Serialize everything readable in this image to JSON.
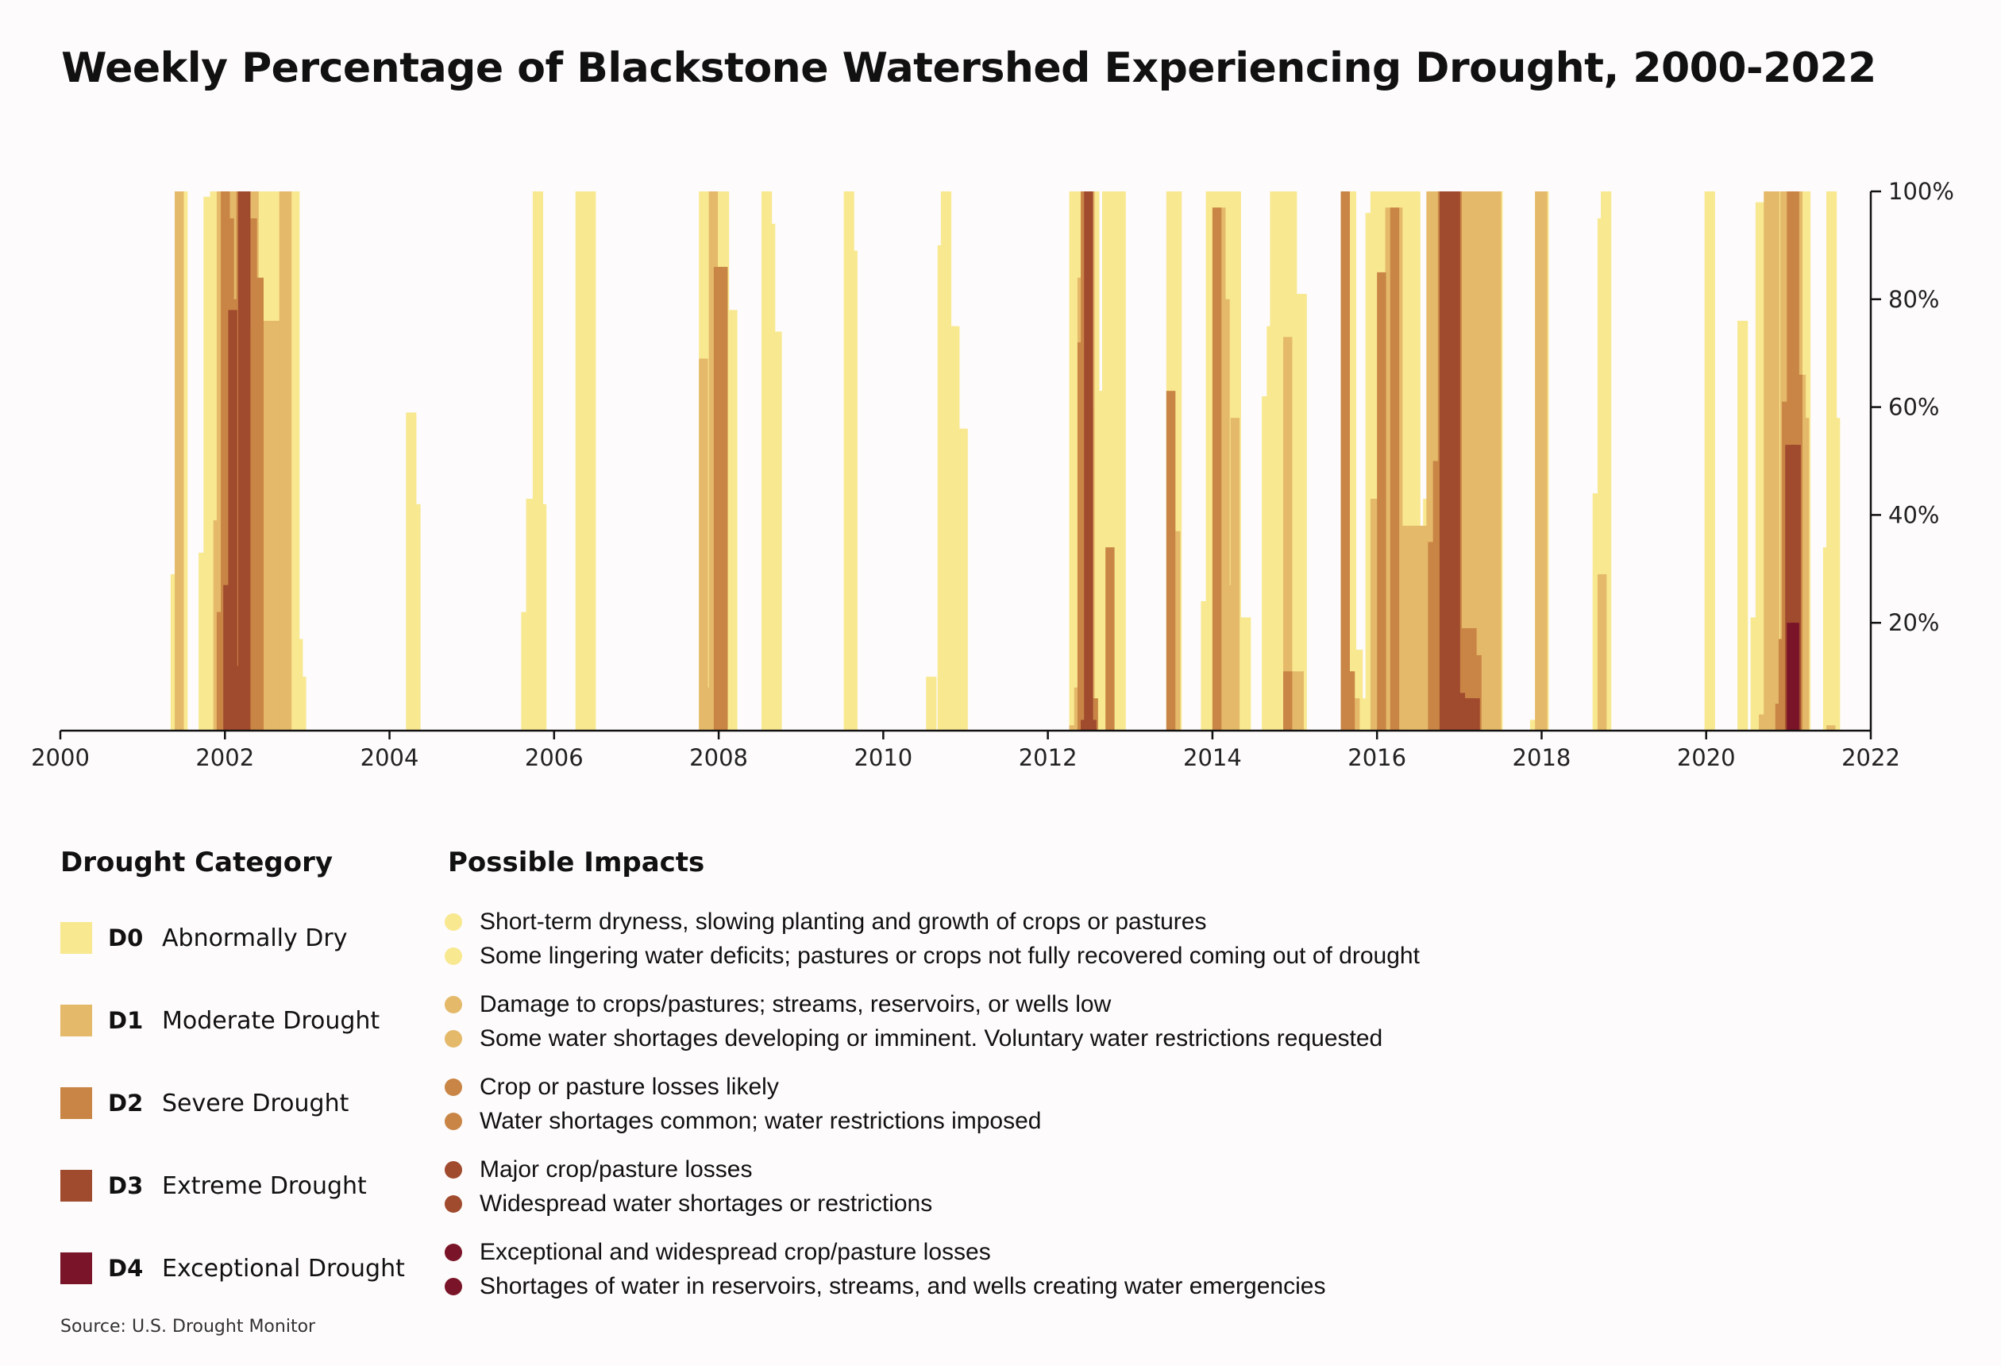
{
  "chart_data": {
    "type": "area",
    "title": "Weekly Percentage of Blackstone Watershed Experiencing Drought, 2000-2022",
    "xlabel": "",
    "ylabel": "",
    "xlim": [
      2000,
      2022
    ],
    "ylim": [
      0,
      100
    ],
    "x_ticks": [
      2000,
      2002,
      2004,
      2006,
      2008,
      2010,
      2012,
      2014,
      2016,
      2018,
      2020,
      2022
    ],
    "x_tick_labels": [
      "2000",
      "2002",
      "2004",
      "2006",
      "2008",
      "2010",
      "2012",
      "2014",
      "2016",
      "2018",
      "2020",
      "2022"
    ],
    "y_ticks": [
      20,
      40,
      60,
      80,
      100
    ],
    "y_tick_labels": [
      "20%",
      "40%",
      "60%",
      "80%",
      "100%"
    ],
    "y_axis_side": "right",
    "grid": false,
    "series": [
      {
        "name": "D0",
        "color": "#f8e890",
        "points": [
          [
            2001.34,
            29
          ],
          [
            2001.39,
            100
          ],
          [
            2001.42,
            100
          ],
          [
            2001.68,
            33
          ],
          [
            2001.74,
            99
          ],
          [
            2001.78,
            97
          ],
          [
            2001.82,
            100
          ],
          [
            2001.86,
            100
          ],
          [
            2001.9,
            100
          ],
          [
            2001.95,
            100
          ],
          [
            2002.0,
            100
          ],
          [
            2002.1,
            100
          ],
          [
            2002.2,
            100
          ],
          [
            2002.3,
            100
          ],
          [
            2002.4,
            100
          ],
          [
            2002.5,
            100
          ],
          [
            2002.6,
            100
          ],
          [
            2002.7,
            100
          ],
          [
            2002.74,
            100
          ],
          [
            2002.78,
            100
          ],
          [
            2002.82,
            17
          ],
          [
            2002.86,
            10
          ],
          [
            2004.2,
            59
          ],
          [
            2004.25,
            42
          ],
          [
            2005.6,
            22
          ],
          [
            2005.66,
            43
          ],
          [
            2005.7,
            33
          ],
          [
            2005.74,
            100
          ],
          [
            2005.78,
            42
          ],
          [
            2006.26,
            100
          ],
          [
            2006.3,
            100
          ],
          [
            2006.34,
            100
          ],
          [
            2006.38,
            100
          ],
          [
            2007.76,
            100
          ],
          [
            2007.82,
            100
          ],
          [
            2007.88,
            100
          ],
          [
            2007.94,
            100
          ],
          [
            2008.0,
            100
          ],
          [
            2008.05,
            78
          ],
          [
            2008.1,
            78
          ],
          [
            2008.52,
            100
          ],
          [
            2008.56,
            94
          ],
          [
            2008.6,
            74
          ],
          [
            2008.64,
            74
          ],
          [
            2009.52,
            100
          ],
          [
            2009.56,
            89
          ],
          [
            2010.52,
            10
          ],
          [
            2010.66,
            90
          ],
          [
            2010.7,
            100
          ],
          [
            2010.74,
            75
          ],
          [
            2010.8,
            75
          ],
          [
            2010.84,
            56
          ],
          [
            2010.9,
            56
          ],
          [
            2012.26,
            100
          ],
          [
            2012.3,
            100
          ],
          [
            2012.4,
            100
          ],
          [
            2012.5,
            100
          ],
          [
            2012.54,
            63
          ],
          [
            2012.6,
            63
          ],
          [
            2012.66,
            100
          ],
          [
            2012.7,
            100
          ],
          [
            2012.76,
            100
          ],
          [
            2012.82,
            100
          ],
          [
            2013.44,
            100
          ],
          [
            2013.5,
            100
          ],
          [
            2013.86,
            24
          ],
          [
            2013.92,
            100
          ],
          [
            2014.0,
            100
          ],
          [
            2014.1,
            100
          ],
          [
            2014.16,
            100
          ],
          [
            2014.22,
            100
          ],
          [
            2014.28,
            21
          ],
          [
            2014.34,
            21
          ],
          [
            2014.6,
            62
          ],
          [
            2014.66,
            75
          ],
          [
            2014.7,
            100
          ],
          [
            2014.76,
            100
          ],
          [
            2014.82,
            100
          ],
          [
            2014.9,
            100
          ],
          [
            2014.96,
            81
          ],
          [
            2015.02,
            81
          ],
          [
            2015.56,
            100
          ],
          [
            2015.62,
            100
          ],
          [
            2015.7,
            15
          ],
          [
            2015.76,
            6
          ],
          [
            2015.86,
            96
          ],
          [
            2015.92,
            100
          ],
          [
            2016.0,
            100
          ],
          [
            2016.1,
            100
          ],
          [
            2016.2,
            100
          ],
          [
            2016.3,
            100
          ],
          [
            2016.4,
            100
          ],
          [
            2016.5,
            38
          ],
          [
            2016.56,
            43
          ],
          [
            2016.62,
            100
          ],
          [
            2016.7,
            100
          ],
          [
            2016.8,
            100
          ],
          [
            2016.9,
            100
          ],
          [
            2017.0,
            100
          ],
          [
            2017.1,
            100
          ],
          [
            2017.2,
            100
          ],
          [
            2017.3,
            100
          ],
          [
            2017.4,
            100
          ],
          [
            2017.86,
            2
          ],
          [
            2017.92,
            100
          ],
          [
            2017.96,
            100
          ],
          [
            2018.62,
            44
          ],
          [
            2018.68,
            95
          ],
          [
            2018.72,
            100
          ],
          [
            2019.98,
            100
          ],
          [
            2020.38,
            76
          ],
          [
            2020.54,
            21
          ],
          [
            2020.6,
            98
          ],
          [
            2020.64,
            58
          ],
          [
            2020.68,
            68
          ],
          [
            2020.74,
            100
          ],
          [
            2020.8,
            100
          ],
          [
            2020.9,
            100
          ],
          [
            2021.0,
            100
          ],
          [
            2021.06,
            100
          ],
          [
            2021.1,
            100
          ],
          [
            2021.14,
            100
          ],
          [
            2021.42,
            34
          ],
          [
            2021.46,
            100
          ],
          [
            2021.5,
            58
          ]
        ]
      },
      {
        "name": "D1",
        "color": "#e4b96a",
        "points": [
          [
            2001.39,
            100
          ],
          [
            2001.86,
            39
          ],
          [
            2001.9,
            100
          ],
          [
            2001.95,
            100
          ],
          [
            2002.0,
            100
          ],
          [
            2002.1,
            100
          ],
          [
            2002.2,
            100
          ],
          [
            2002.3,
            100
          ],
          [
            2002.4,
            76
          ],
          [
            2002.5,
            76
          ],
          [
            2002.56,
            2
          ],
          [
            2002.6,
            76
          ],
          [
            2002.66,
            100
          ],
          [
            2002.7,
            100
          ],
          [
            2007.76,
            69
          ],
          [
            2007.82,
            8
          ],
          [
            2007.88,
            100
          ],
          [
            2007.94,
            86
          ],
          [
            2008.0,
            86
          ],
          [
            2012.26,
            1
          ],
          [
            2012.32,
            8
          ],
          [
            2012.36,
            84
          ],
          [
            2012.4,
            100
          ],
          [
            2012.46,
            100
          ],
          [
            2013.44,
            63
          ],
          [
            2013.5,
            37
          ],
          [
            2014.0,
            97
          ],
          [
            2014.05,
            97
          ],
          [
            2014.1,
            80
          ],
          [
            2014.16,
            27
          ],
          [
            2014.22,
            58
          ],
          [
            2014.86,
            73
          ],
          [
            2014.9,
            11
          ],
          [
            2015.0,
            11
          ],
          [
            2015.56,
            100
          ],
          [
            2015.62,
            11
          ],
          [
            2015.68,
            6
          ],
          [
            2015.92,
            43
          ],
          [
            2016.0,
            39
          ],
          [
            2016.1,
            97
          ],
          [
            2016.2,
            97
          ],
          [
            2016.3,
            38
          ],
          [
            2016.4,
            38
          ],
          [
            2016.5,
            38
          ],
          [
            2016.6,
            100
          ],
          [
            2016.7,
            100
          ],
          [
            2016.8,
            100
          ],
          [
            2016.9,
            100
          ],
          [
            2017.0,
            100
          ],
          [
            2017.1,
            100
          ],
          [
            2017.2,
            100
          ],
          [
            2017.3,
            100
          ],
          [
            2017.4,
            100
          ],
          [
            2017.92,
            100
          ],
          [
            2017.96,
            100
          ],
          [
            2018.68,
            29
          ],
          [
            2020.64,
            3
          ],
          [
            2020.7,
            100
          ],
          [
            2020.78,
            100
          ],
          [
            2020.9,
            100
          ],
          [
            2021.0,
            100
          ],
          [
            2021.06,
            100
          ],
          [
            2021.1,
            66
          ],
          [
            2021.14,
            58
          ],
          [
            2021.46,
            1
          ]
        ]
      },
      {
        "name": "D2",
        "color": "#c98545",
        "points": [
          [
            2001.9,
            22
          ],
          [
            2001.95,
            100
          ],
          [
            2002.0,
            95
          ],
          [
            2002.05,
            44
          ],
          [
            2002.1,
            80
          ],
          [
            2002.14,
            100
          ],
          [
            2002.18,
            100
          ],
          [
            2002.22,
            88
          ],
          [
            2002.28,
            95
          ],
          [
            2002.32,
            75
          ],
          [
            2002.36,
            84
          ],
          [
            2007.94,
            86
          ],
          [
            2008.0,
            86
          ],
          [
            2012.36,
            72
          ],
          [
            2012.4,
            100
          ],
          [
            2012.44,
            60
          ],
          [
            2012.5,
            6
          ],
          [
            2012.7,
            34
          ],
          [
            2013.44,
            63
          ],
          [
            2014.0,
            97
          ],
          [
            2014.86,
            11
          ],
          [
            2015.56,
            100
          ],
          [
            2015.62,
            11
          ],
          [
            2016.0,
            85
          ],
          [
            2016.16,
            97
          ],
          [
            2016.62,
            35
          ],
          [
            2016.68,
            50
          ],
          [
            2016.74,
            100
          ],
          [
            2016.8,
            100
          ],
          [
            2016.86,
            100
          ],
          [
            2016.92,
            100
          ],
          [
            2016.98,
            19
          ],
          [
            2017.04,
            19
          ],
          [
            2017.1,
            19
          ],
          [
            2017.16,
            14
          ],
          [
            2020.84,
            5
          ],
          [
            2020.88,
            17
          ],
          [
            2020.92,
            61
          ],
          [
            2020.98,
            100
          ],
          [
            2021.02,
            100
          ],
          [
            2021.06,
            66
          ]
        ]
      },
      {
        "name": "D3",
        "color": "#a04a2e",
        "points": [
          [
            2001.98,
            27
          ],
          [
            2002.04,
            78
          ],
          [
            2002.12,
            12
          ],
          [
            2002.16,
            100
          ],
          [
            2002.2,
            100
          ],
          [
            2012.4,
            2
          ],
          [
            2012.44,
            100
          ],
          [
            2012.48,
            2
          ],
          [
            2016.76,
            100
          ],
          [
            2016.84,
            100
          ],
          [
            2016.9,
            100
          ],
          [
            2016.96,
            7
          ],
          [
            2017.02,
            6
          ],
          [
            2017.08,
            6
          ],
          [
            2017.14,
            6
          ],
          [
            2020.96,
            53
          ],
          [
            2021.0,
            53
          ],
          [
            2021.04,
            53
          ]
        ]
      },
      {
        "name": "D4",
        "color": "#7a1428",
        "points": [
          [
            2020.98,
            20
          ],
          [
            2021.02,
            20
          ]
        ]
      }
    ]
  },
  "legend": {
    "category_heading": "Drought Category",
    "impacts_heading": "Possible Impacts",
    "categories": [
      {
        "code": "D0",
        "name": "Abnormally Dry",
        "color": "#f8e890"
      },
      {
        "code": "D1",
        "name": "Moderate Drought",
        "color": "#e4b96a"
      },
      {
        "code": "D2",
        "name": "Severe Drought",
        "color": "#c98545"
      },
      {
        "code": "D3",
        "name": "Extreme Drought",
        "color": "#a04a2e"
      },
      {
        "code": "D4",
        "name": "Exceptional Drought",
        "color": "#7a1428"
      }
    ],
    "impacts": [
      {
        "text": "Short-term dryness, slowing planting and growth of crops or pastures",
        "color": "#f8e890"
      },
      {
        "text": "Some lingering water deficits; pastures or crops not fully recovered coming out of drought",
        "color": "#f8e890"
      },
      {
        "text": "Damage to crops/pastures; streams, reservoirs, or wells low",
        "color": "#e4b96a"
      },
      {
        "text": "Some water shortages developing or imminent. Voluntary water restrictions requested",
        "color": "#e4b96a"
      },
      {
        "text": "Crop or pasture losses likely",
        "color": "#c98545"
      },
      {
        "text": "Water shortages common; water restrictions imposed",
        "color": "#c98545"
      },
      {
        "text": "Major crop/pasture losses",
        "color": "#a04a2e"
      },
      {
        "text": "Widespread water shortages or restrictions",
        "color": "#a04a2e"
      },
      {
        "text": "Exceptional and widespread crop/pasture losses",
        "color": "#7a1428"
      },
      {
        "text": "Shortages of water in reservoirs, streams, and wells creating water emergencies",
        "color": "#7a1428"
      }
    ]
  },
  "source": "Source: U.S. Drought Monitor"
}
